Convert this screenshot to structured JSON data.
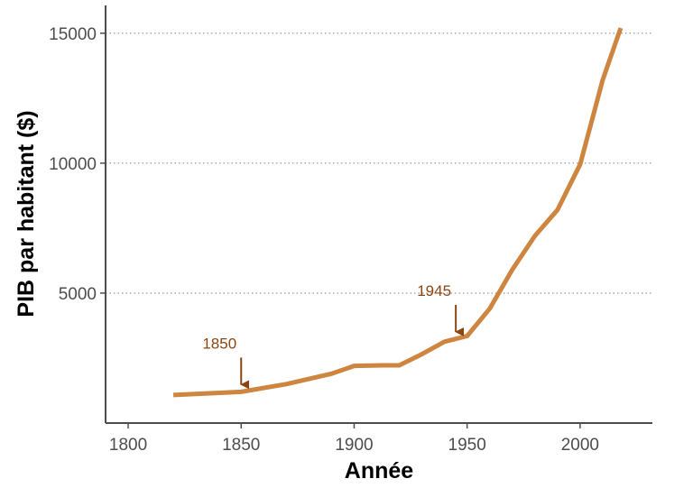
{
  "chart_data": {
    "type": "line",
    "title": "",
    "xlabel": "Année",
    "ylabel": "PIB par habitant ($)",
    "xlim": [
      1790,
      2032
    ],
    "ylim": [
      0,
      16000
    ],
    "x_ticks": [
      1800,
      1850,
      1900,
      1950,
      2000
    ],
    "y_ticks": [
      5000,
      10000,
      15000
    ],
    "grid": "horizontal-dotted",
    "series": [
      {
        "x": [
          1820,
          1850,
          1870,
          1890,
          1900,
          1913,
          1920,
          1930,
          1940,
          1950,
          1960,
          1970,
          1980,
          1990,
          2000,
          2010,
          2018
        ],
        "y": [
          1080,
          1200,
          1500,
          1900,
          2200,
          2220,
          2220,
          2650,
          3130,
          3350,
          4400,
          5900,
          7200,
          8200,
          9950,
          13200,
          15200
        ]
      }
    ],
    "annotations": [
      {
        "label": "1850",
        "x": 1850,
        "y": 1200
      },
      {
        "label": "1945",
        "x": 1945,
        "y": 3230
      }
    ],
    "colors": {
      "line": "#cd853f",
      "annotation": "#8b4513",
      "grid": "#7f7f7f",
      "axis": "#4d4d4d"
    }
  }
}
